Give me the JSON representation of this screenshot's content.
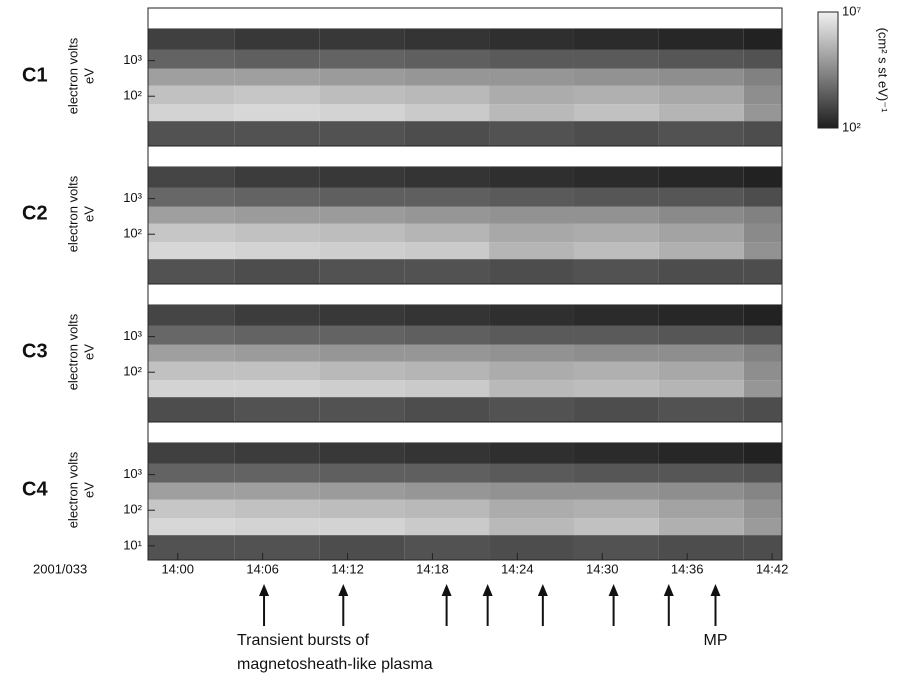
{
  "chart_data": [
    {
      "type": "heatmap",
      "label": "C1",
      "ylabel": "electron volts",
      "ylabel2": "eV",
      "log_y": true,
      "ylim": [
        4,
        30000
      ],
      "yticks": [
        {
          "value": 100,
          "label": "10²"
        },
        {
          "value": 1000,
          "label": "10³"
        }
      ],
      "xlim": [
        837.9,
        882.7
      ],
      "bins": [
        837.9,
        844,
        850,
        856,
        862,
        868,
        874,
        880,
        882.7
      ],
      "energy_bins": [
        4,
        20,
        60,
        200,
        600,
        2000,
        8000
      ],
      "values": [
        [
          3.2,
          3.2,
          3.2,
          3.1,
          3.2,
          3.1,
          3.2,
          3.1
        ],
        [
          6.2,
          6.3,
          6.2,
          6.0,
          5.6,
          5.8,
          5.5,
          4.8
        ],
        [
          5.8,
          5.9,
          5.7,
          5.6,
          5.3,
          5.4,
          5.2,
          4.6
        ],
        [
          5.0,
          5.0,
          4.9,
          4.8,
          4.8,
          4.7,
          4.6,
          4.3
        ],
        [
          3.6,
          3.5,
          3.6,
          3.5,
          3.4,
          3.4,
          3.3,
          3.2
        ],
        [
          2.8,
          2.6,
          2.6,
          2.5,
          2.4,
          2.3,
          2.2,
          2.1
        ]
      ],
      "colorbar": {
        "label": "(cm² s st eV)⁻¹",
        "lim": [
          100,
          10000000
        ],
        "ticks": [
          {
            "value": 10000000,
            "label": "10⁷"
          },
          {
            "value": 100,
            "label": "10²"
          }
        ]
      }
    },
    {
      "type": "heatmap",
      "label": "C2",
      "ylabel": "electron volts",
      "ylabel2": "eV",
      "log_y": true,
      "ylim": [
        4,
        30000
      ],
      "yticks": [
        {
          "value": 100,
          "label": "10²"
        },
        {
          "value": 1000,
          "label": "10³"
        }
      ],
      "xlim": [
        837.9,
        882.7
      ],
      "bins": [
        837.9,
        844,
        850,
        856,
        862,
        868,
        874,
        880,
        882.7
      ],
      "energy_bins": [
        4,
        20,
        60,
        200,
        600,
        2000,
        8000
      ],
      "values": [
        [
          3.2,
          3.1,
          3.2,
          3.2,
          3.1,
          3.2,
          3.1,
          3.1
        ],
        [
          6.3,
          6.2,
          6.1,
          6.0,
          5.5,
          5.7,
          5.4,
          4.7
        ],
        [
          5.9,
          5.8,
          5.7,
          5.5,
          5.2,
          5.3,
          5.1,
          4.5
        ],
        [
          5.0,
          4.9,
          4.9,
          4.8,
          4.7,
          4.7,
          4.5,
          4.3
        ],
        [
          3.7,
          3.6,
          3.5,
          3.5,
          3.4,
          3.3,
          3.3,
          3.1
        ],
        [
          2.9,
          2.7,
          2.6,
          2.5,
          2.4,
          2.3,
          2.2,
          2.1
        ]
      ]
    },
    {
      "type": "heatmap",
      "label": "C3",
      "ylabel": "electron volts",
      "ylabel2": "eV",
      "log_y": true,
      "ylim": [
        4,
        30000
      ],
      "yticks": [
        {
          "value": 100,
          "label": "10²"
        },
        {
          "value": 1000,
          "label": "10³"
        }
      ],
      "xlim": [
        837.9,
        882.7
      ],
      "bins": [
        837.9,
        844,
        850,
        856,
        862,
        868,
        874,
        880,
        882.7
      ],
      "energy_bins": [
        4,
        20,
        60,
        200,
        600,
        2000,
        8000
      ],
      "values": [
        [
          3.1,
          3.2,
          3.2,
          3.1,
          3.2,
          3.1,
          3.2,
          3.1
        ],
        [
          6.2,
          6.2,
          6.1,
          6.0,
          5.6,
          5.7,
          5.5,
          4.8
        ],
        [
          5.8,
          5.8,
          5.6,
          5.5,
          5.3,
          5.4,
          5.2,
          4.6
        ],
        [
          5.0,
          4.9,
          4.8,
          4.8,
          4.7,
          4.6,
          4.6,
          4.3
        ],
        [
          3.7,
          3.6,
          3.6,
          3.5,
          3.4,
          3.4,
          3.3,
          3.2
        ],
        [
          2.9,
          2.7,
          2.6,
          2.5,
          2.4,
          2.3,
          2.2,
          2.1
        ]
      ]
    },
    {
      "type": "heatmap",
      "label": "C4",
      "ylabel": "electron volts",
      "ylabel2": "eV",
      "log_y": true,
      "ylim": [
        4,
        30000
      ],
      "yticks": [
        {
          "value": 10,
          "label": "10¹"
        },
        {
          "value": 100,
          "label": "10²"
        },
        {
          "value": 1000,
          "label": "10³"
        }
      ],
      "xlim": [
        837.9,
        882.7
      ],
      "bins": [
        837.9,
        844,
        850,
        856,
        862,
        868,
        874,
        880,
        882.7
      ],
      "energy_bins": [
        4,
        20,
        60,
        200,
        600,
        2000,
        8000
      ],
      "values": [
        [
          3.2,
          3.2,
          3.1,
          3.2,
          3.1,
          3.2,
          3.1,
          3.1
        ],
        [
          6.3,
          6.2,
          6.2,
          6.0,
          5.6,
          5.8,
          5.4,
          4.9
        ],
        [
          5.9,
          5.8,
          5.7,
          5.6,
          5.3,
          5.4,
          5.1,
          4.7
        ],
        [
          5.0,
          5.0,
          4.9,
          4.8,
          4.7,
          4.7,
          4.6,
          4.4
        ],
        [
          3.6,
          3.6,
          3.5,
          3.5,
          3.4,
          3.3,
          3.3,
          3.2
        ],
        [
          2.8,
          2.7,
          2.6,
          2.5,
          2.4,
          2.3,
          2.2,
          2.1
        ]
      ],
      "xticks": [
        {
          "value": 840,
          "label": "14:00"
        },
        {
          "value": 846,
          "label": "14:06"
        },
        {
          "value": 852,
          "label": "14:12"
        },
        {
          "value": 858,
          "label": "14:18"
        },
        {
          "value": 864,
          "label": "14:24"
        },
        {
          "value": 870,
          "label": "14:30"
        },
        {
          "value": 876,
          "label": "14:36"
        },
        {
          "value": 882,
          "label": "14:42"
        }
      ],
      "date_label": "2001/033",
      "arrow_times": [
        846.1,
        851.7,
        859,
        861.9,
        865.8,
        870.8,
        874.7,
        878
      ],
      "annotations": [
        "Transient bursts of",
        "magnetosheath-like plasma"
      ],
      "mp_label": "MP"
    }
  ]
}
